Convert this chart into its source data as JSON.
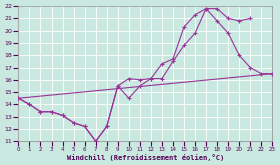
{
  "background_color": "#c8e8e0",
  "grid_color": "#b0d8d0",
  "line_color": "#993399",
  "xlabel": "Windchill (Refroidissement éolien,°C)",
  "xlim": [
    0,
    23
  ],
  "ylim": [
    11,
    22
  ],
  "xticks": [
    0,
    1,
    2,
    3,
    4,
    5,
    6,
    7,
    8,
    9,
    10,
    11,
    12,
    13,
    14,
    15,
    16,
    17,
    18,
    19,
    20,
    21,
    22,
    23
  ],
  "yticks": [
    11,
    12,
    13,
    14,
    15,
    16,
    17,
    18,
    19,
    20,
    21,
    22
  ],
  "line1_x": [
    0,
    1,
    2,
    3,
    4,
    5,
    6,
    7,
    8,
    9,
    10,
    11,
    12,
    13,
    14,
    15,
    16,
    17,
    18,
    19,
    20,
    21,
    22,
    23
  ],
  "line1_y": [
    14.5,
    14.0,
    13.4,
    13.4,
    13.1,
    12.5,
    12.2,
    11.0,
    12.2,
    15.5,
    16.1,
    16.0,
    16.1,
    16.1,
    17.5,
    18.8,
    19.8,
    21.8,
    20.8,
    19.8,
    18.0,
    17.0,
    16.5,
    16.5
  ],
  "line2_x": [
    0,
    1,
    2,
    3,
    4,
    5,
    6,
    7,
    8,
    9,
    10,
    11,
    12,
    13,
    14,
    15,
    16,
    17,
    18,
    19,
    20,
    21
  ],
  "line2_y": [
    14.5,
    14.0,
    13.4,
    13.4,
    13.1,
    12.5,
    12.2,
    11.0,
    12.2,
    15.5,
    14.5,
    15.5,
    16.1,
    17.3,
    17.7,
    20.3,
    21.3,
    21.8,
    21.8,
    21.0,
    20.8,
    21.0
  ],
  "line3_x": [
    0,
    23
  ],
  "line3_y": [
    14.5,
    16.5
  ]
}
